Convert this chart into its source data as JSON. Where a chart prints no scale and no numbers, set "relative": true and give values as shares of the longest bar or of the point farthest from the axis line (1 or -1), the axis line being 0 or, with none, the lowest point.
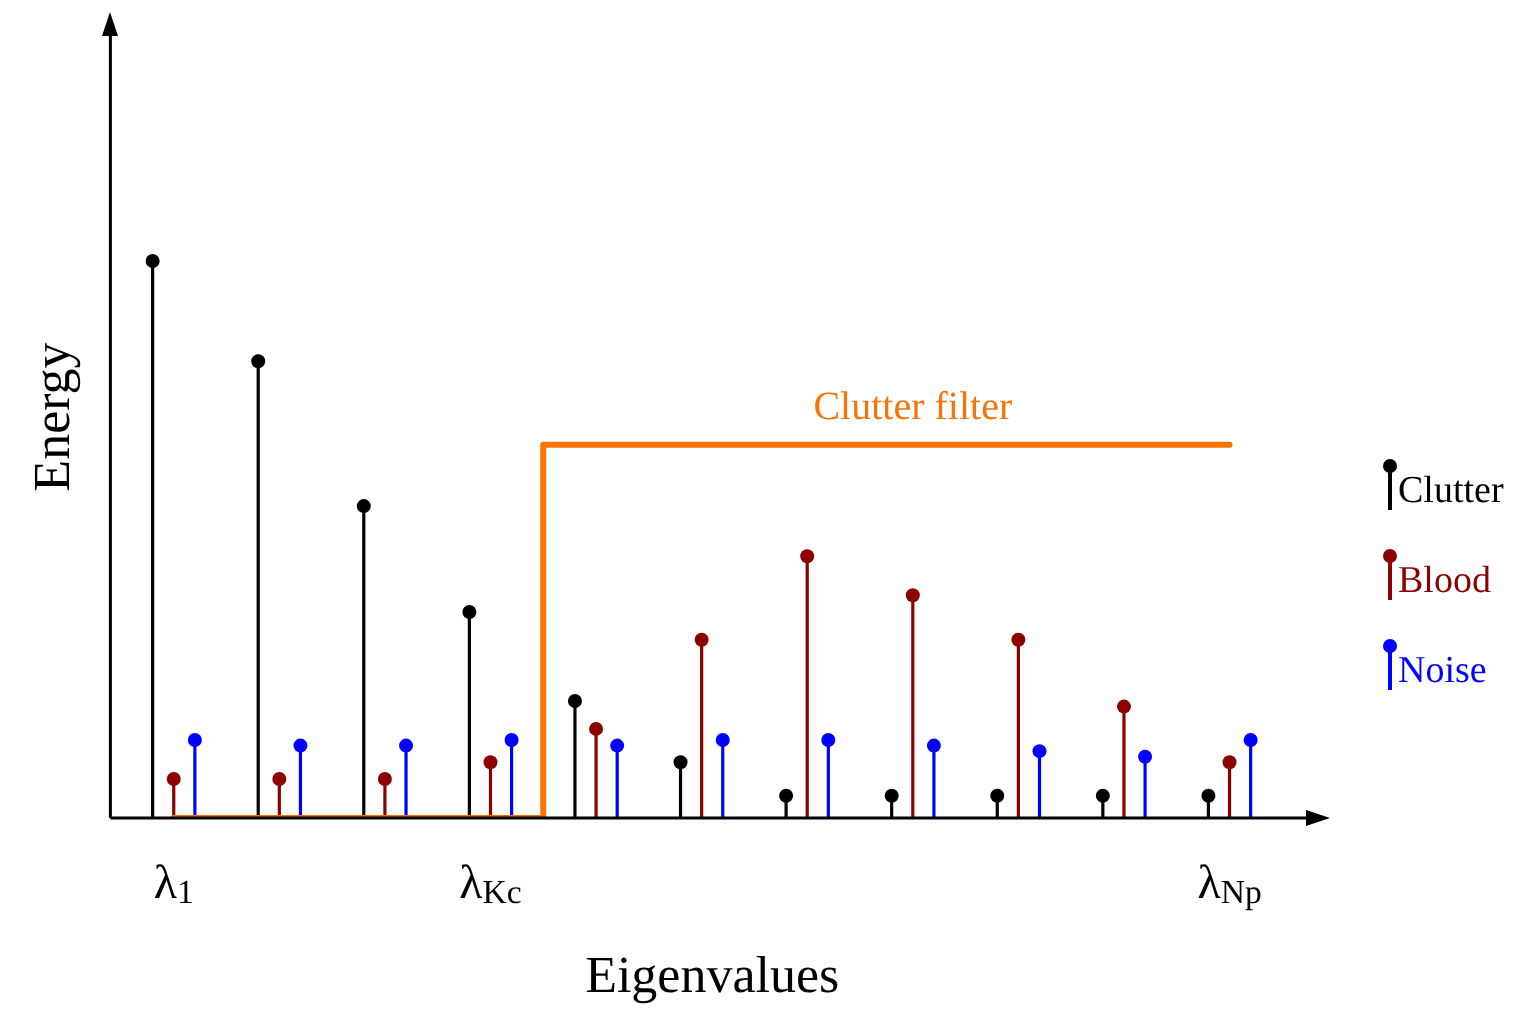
{
  "chart_data": {
    "type": "lollipop",
    "relative": true,
    "xlabel": "Eigenvalues",
    "ylabel": "Energy",
    "categories": [
      "λ$_{1}$",
      null,
      null,
      "λ$_{Kc}$",
      null,
      null,
      null,
      null,
      null,
      null,
      "λ$_{Np}$"
    ],
    "legend": "right",
    "marker": "circle",
    "grid": false,
    "series": [
      {
        "name": "Clutter",
        "color": "#000000",
        "values": [
          1,
          0.82,
          0.56,
          0.37,
          0.21,
          0.1,
          0.04,
          0.04,
          0.04,
          0.04,
          0.04
        ]
      },
      {
        "name": "Blood",
        "color": "#8b0000",
        "values": [
          0.07,
          0.07,
          0.07,
          0.1,
          0.16,
          0.32,
          0.47,
          0.4,
          0.32,
          0.2,
          0.1
        ]
      },
      {
        "name": "Noise",
        "color": "#0000ff",
        "values": [
          0.14,
          0.13,
          0.13,
          0.14,
          0.13,
          0.14,
          0.14,
          0.13,
          0.12,
          0.11,
          0.14
        ]
      },
      {
        "name": "Clutter filter",
        "type": "step",
        "marker": "none",
        "color": "#f97306",
        "values": [
          0,
          0,
          0,
          0,
          0.67,
          0.67,
          0.67,
          0.67,
          0.67,
          0.67,
          0.67
        ]
      }
    ]
  }
}
